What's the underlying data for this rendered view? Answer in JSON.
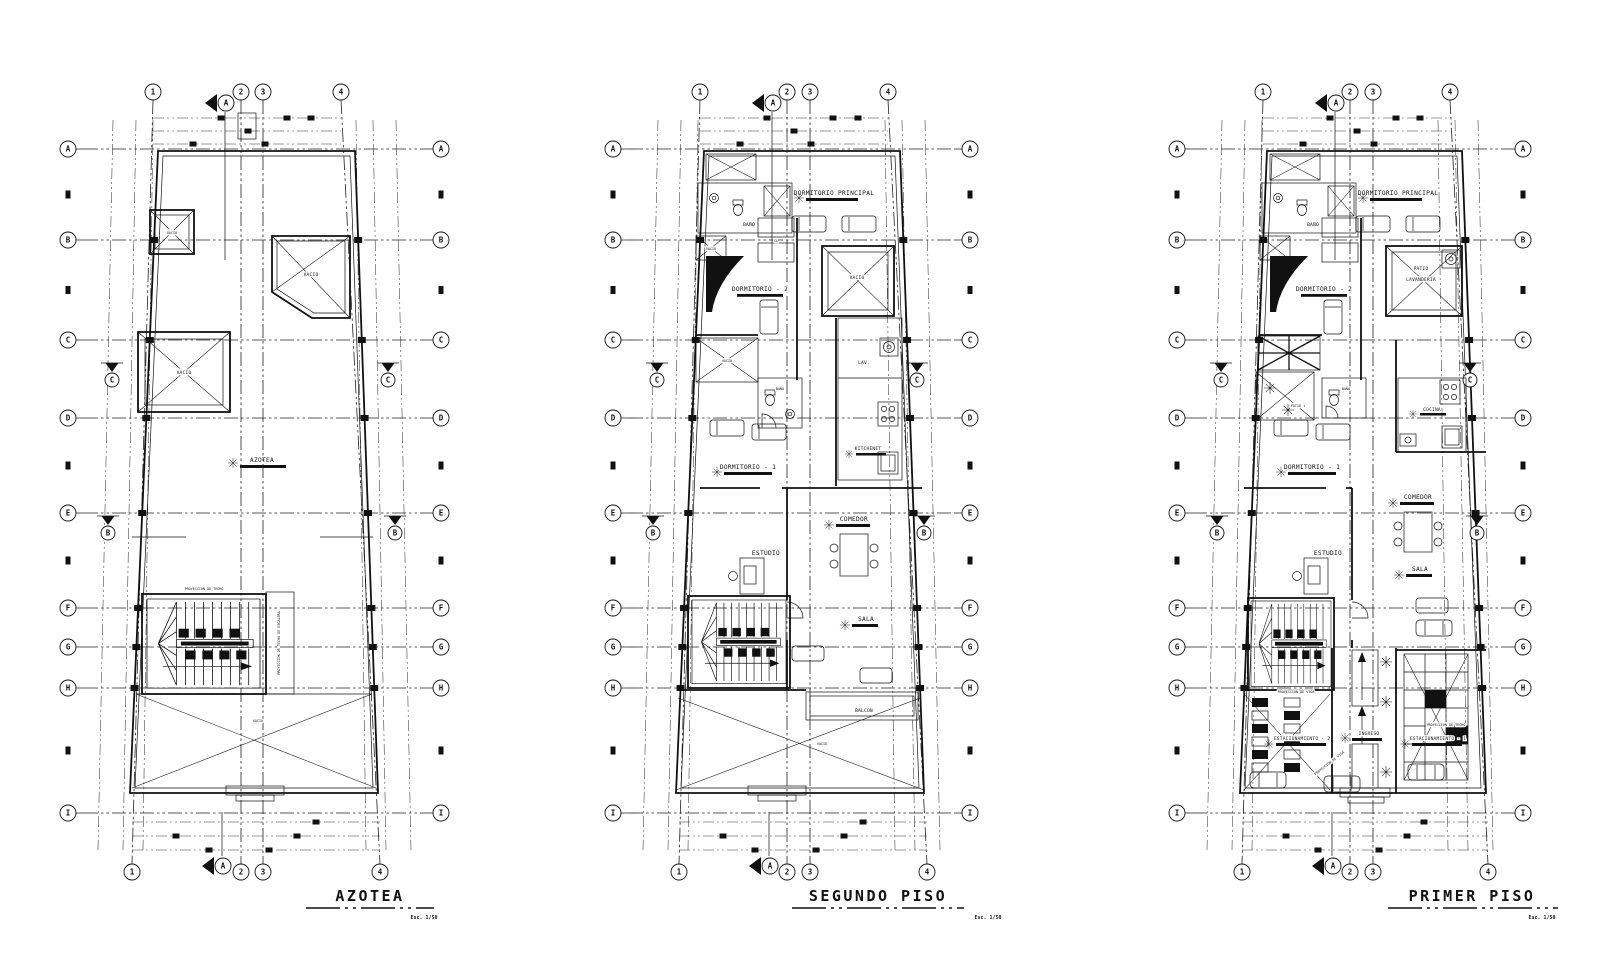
{
  "grid": {
    "row_letters": [
      "A",
      "B",
      "C",
      "D",
      "E",
      "F",
      "G",
      "H",
      "I"
    ],
    "column_numbers": [
      "1",
      "2",
      "3",
      "4"
    ],
    "section_markers": {
      "top": "A",
      "bottom": "A",
      "left_upper": "C",
      "left_lower": "B",
      "right_upper": "C",
      "right_lower": "B"
    }
  },
  "plans": [
    {
      "title": "AZOTEA",
      "scale": "Esc. 1/50",
      "rooms": {
        "vacio_shaft": "VACIO",
        "vacio_patio": "VACIO",
        "vacio_square": "VACIO",
        "azotea": "AZOTEA",
        "vacio_bottom": "VACIO"
      },
      "notes": {
        "proyeccion_techo": "PROYECCION DE TECHO",
        "proyeccion_escalera": "PROYECCION DE TECHO DE ESCALERA"
      }
    },
    {
      "title": "SEGUNDO PISO",
      "scale": "Esc. 1/50",
      "rooms": {
        "dormitorio_principal": "DORMITORIO  PRINCIPAL",
        "bano_1": "BAÑO",
        "vacio_1": "VACIO",
        "closet": "CL",
        "dormitorio_2": "DORMITORIO - 2",
        "vacio_2": "VACIO",
        "vacio_3": "VACIO",
        "bano_2": "BAÑO",
        "lavanderia": "LAV.",
        "kitchenet": "KITCHENET",
        "dormitorio_1": "DORMITORIO - 1",
        "comedor": "COMEDOR",
        "estudio": "ESTUDIO",
        "sala": "SALA",
        "balcon": "BALCON",
        "vacio_4": "VACIO"
      }
    },
    {
      "title": "PRIMER PISO",
      "scale": "Esc. 1/50",
      "rooms": {
        "dormitorio_principal": "DORMITORIO  PRINCIPAL",
        "bano_1": "BAÑO",
        "dormitorio_2": "DORMITORIO - 2",
        "patio_line1": "PATIO",
        "patio_line2": "LAVANDERIA",
        "patio_1": "PATIO 1",
        "bano_2": "BAÑO",
        "cocina": "COCINA",
        "dormitorio_1": "DORMITORIO - 1",
        "comedor": "COMEDOR",
        "estudio": "ESTUDIO",
        "sala": "SALA",
        "estacionamiento_2": "ESTACIONAMIENTO - 2",
        "ingreso": "INGRESO",
        "estacionamiento_1": "ESTACIONAMIENTO - 1"
      },
      "notes": {
        "proyeccion_viga_1": "PROYECCION DE VIGA",
        "proyeccion_viga_2": "PROYECCION DE VIGA",
        "proyeccion_techo": "PROYECCION DE TECHO"
      }
    }
  ],
  "colors": {
    "ink": "#111111",
    "paper": "#ffffff"
  }
}
